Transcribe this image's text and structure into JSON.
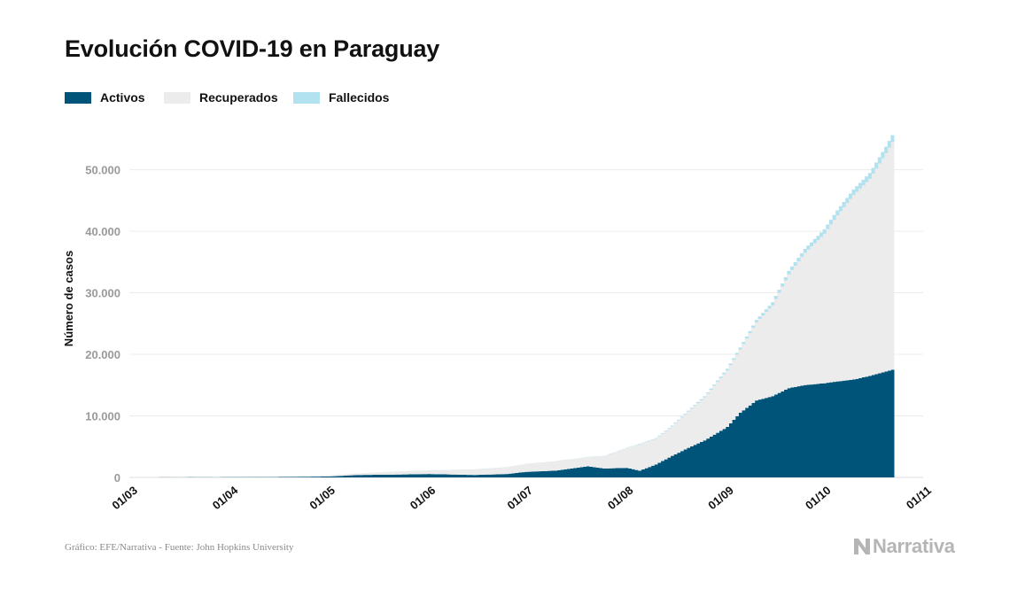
{
  "chart_data": {
    "type": "area",
    "stacked": true,
    "title": "Evolución COVID-19 en Paraguay",
    "xlabel": "",
    "ylabel": "Número de casos",
    "ylim": [
      0,
      58000
    ],
    "yticks": [
      0,
      10000,
      20000,
      30000,
      40000,
      50000
    ],
    "ytick_labels": [
      "0",
      "10.000",
      "20.000",
      "30.000",
      "40.000",
      "50.000"
    ],
    "x_start": "2020-03-01",
    "x_end": "2020-11-01",
    "xtick_dates": [
      "2020-03-01",
      "2020-04-01",
      "2020-05-01",
      "2020-06-01",
      "2020-07-01",
      "2020-08-01",
      "2020-09-01",
      "2020-10-01",
      "2020-11-01"
    ],
    "xtick_labels": [
      "01/03",
      "01/04",
      "01/05",
      "01/06",
      "01/07",
      "01/08",
      "01/09",
      "01/10",
      "01/11"
    ],
    "grid": true,
    "legend_position": "top-left",
    "x": [
      "2020-03-07",
      "2020-03-31",
      "2020-04-15",
      "2020-05-01",
      "2020-05-10",
      "2020-05-20",
      "2020-06-01",
      "2020-06-15",
      "2020-06-25",
      "2020-07-01",
      "2020-07-10",
      "2020-07-20",
      "2020-07-25",
      "2020-08-01",
      "2020-08-05",
      "2020-08-10",
      "2020-08-15",
      "2020-08-20",
      "2020-08-25",
      "2020-09-01",
      "2020-09-05",
      "2020-09-10",
      "2020-09-15",
      "2020-09-20",
      "2020-09-25",
      "2020-10-01",
      "2020-10-05",
      "2020-10-10",
      "2020-10-15",
      "2020-10-20",
      "2020-10-22"
    ],
    "series": [
      {
        "name": "Activos",
        "color": "#005479",
        "values": [
          5,
          50,
          60,
          150,
          400,
          450,
          550,
          400,
          550,
          900,
          1100,
          1800,
          1450,
          1550,
          1100,
          2100,
          3500,
          4800,
          6000,
          8200,
          10500,
          12500,
          13200,
          14500,
          15000,
          15300,
          15600,
          15900,
          16500,
          17200,
          17500
        ]
      },
      {
        "name": "Recuperados",
        "color": "#ececec",
        "values": [
          0,
          25,
          100,
          200,
          250,
          450,
          600,
          900,
          1100,
          1300,
          1500,
          1500,
          2000,
          3200,
          4300,
          4200,
          4800,
          5900,
          7000,
          9200,
          10300,
          12700,
          14800,
          18500,
          21500,
          24300,
          27000,
          30000,
          32000,
          35500,
          37000
        ]
      },
      {
        "name": "Fallecidos",
        "color": "#b2e1ef",
        "values": [
          0,
          3,
          8,
          10,
          11,
          11,
          12,
          13,
          16,
          20,
          22,
          30,
          35,
          45,
          60,
          85,
          120,
          150,
          185,
          250,
          310,
          380,
          460,
          560,
          640,
          720,
          800,
          880,
          950,
          1040,
          1100
        ]
      }
    ]
  },
  "legend": [
    {
      "label": "Activos",
      "color": "#005479"
    },
    {
      "label": "Recuperados",
      "color": "#ececec"
    },
    {
      "label": "Fallecidos",
      "color": "#b2e1ef"
    }
  ],
  "source": "Gráfico: EFE/Narrativa - Fuente: John Hopkins University",
  "brand": "Narrativa"
}
